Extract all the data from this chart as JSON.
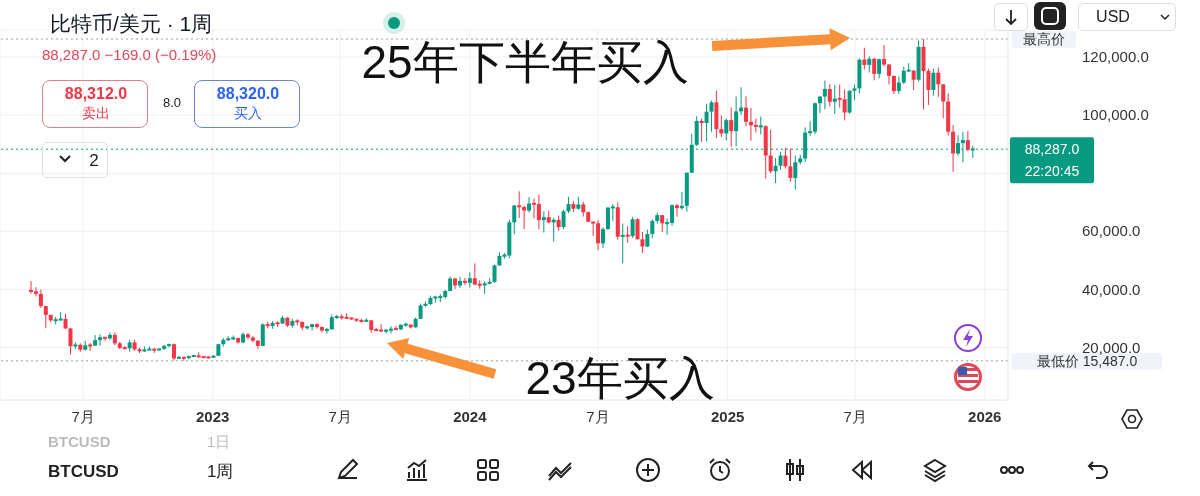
{
  "chart_data": {
    "type": "candlestick",
    "title": "比特币/美元 · 1周",
    "subtitle": "88,287.0 −169.0 (−0.19%)",
    "x": [
      "2022-04-18",
      "2022-04-25",
      "2022-05-02",
      "2022-05-09",
      "2022-05-16",
      "2022-05-23",
      "2022-05-30",
      "2022-06-06",
      "2022-06-13",
      "2022-06-20",
      "2022-06-27",
      "2022-07-04",
      "2022-07-11",
      "2022-07-18",
      "2022-07-25",
      "2022-08-01",
      "2022-08-08",
      "2022-08-15",
      "2022-08-22",
      "2022-08-29",
      "2022-09-05",
      "2022-09-12",
      "2022-09-19",
      "2022-09-26",
      "2022-10-03",
      "2022-10-10",
      "2022-10-17",
      "2022-10-24",
      "2022-10-31",
      "2022-11-07",
      "2022-11-14",
      "2022-11-21",
      "2022-11-28",
      "2022-12-05",
      "2022-12-12",
      "2022-12-19",
      "2022-12-26",
      "2023-01-02",
      "2023-01-09",
      "2023-01-16",
      "2023-01-23",
      "2023-01-30",
      "2023-02-06",
      "2023-02-13",
      "2023-02-20",
      "2023-02-27",
      "2023-03-06",
      "2023-03-13",
      "2023-03-20",
      "2023-03-27",
      "2023-04-03",
      "2023-04-10",
      "2023-04-17",
      "2023-04-24",
      "2023-05-01",
      "2023-05-08",
      "2023-05-15",
      "2023-05-22",
      "2023-05-29",
      "2023-06-05",
      "2023-06-12",
      "2023-06-19",
      "2023-06-26",
      "2023-07-03",
      "2023-07-10",
      "2023-07-17",
      "2023-07-24",
      "2023-07-31",
      "2023-08-07",
      "2023-08-14",
      "2023-08-21",
      "2023-08-28",
      "2023-09-04",
      "2023-09-11",
      "2023-09-18",
      "2023-09-25",
      "2023-10-02",
      "2023-10-09",
      "2023-10-16",
      "2023-10-23",
      "2023-10-30",
      "2023-11-06",
      "2023-11-13",
      "2023-11-20",
      "2023-11-27",
      "2023-12-04",
      "2023-12-11",
      "2023-12-18",
      "2023-12-25",
      "2024-01-01",
      "2024-01-08",
      "2024-01-15",
      "2024-01-22",
      "2024-01-29",
      "2024-02-05",
      "2024-02-12",
      "2024-02-19",
      "2024-02-26",
      "2024-03-04",
      "2024-03-11",
      "2024-03-18",
      "2024-03-25",
      "2024-04-01",
      "2024-04-08",
      "2024-04-15",
      "2024-04-22",
      "2024-04-29",
      "2024-05-06",
      "2024-05-13",
      "2024-05-20",
      "2024-05-27",
      "2024-06-03",
      "2024-06-10",
      "2024-06-17",
      "2024-06-24",
      "2024-07-01",
      "2024-07-08",
      "2024-07-15",
      "2024-07-22",
      "2024-07-29",
      "2024-08-05",
      "2024-08-12",
      "2024-08-19",
      "2024-08-26",
      "2024-09-02",
      "2024-09-09",
      "2024-09-16",
      "2024-09-23",
      "2024-09-30",
      "2024-10-07",
      "2024-10-14",
      "2024-10-21",
      "2024-10-28",
      "2024-11-04",
      "2024-11-11",
      "2024-11-18",
      "2024-11-25",
      "2024-12-02",
      "2024-12-09",
      "2024-12-16",
      "2024-12-23",
      "2024-12-30",
      "2025-01-06",
      "2025-01-13",
      "2025-01-20",
      "2025-01-27",
      "2025-02-03",
      "2025-02-10",
      "2025-02-17",
      "2025-02-24",
      "2025-03-03",
      "2025-03-10",
      "2025-03-17",
      "2025-03-24",
      "2025-03-31",
      "2025-04-07",
      "2025-04-14",
      "2025-04-21",
      "2025-04-28",
      "2025-05-05",
      "2025-05-12",
      "2025-05-19",
      "2025-05-26",
      "2025-06-02",
      "2025-06-09",
      "2025-06-16",
      "2025-06-23",
      "2025-06-30",
      "2025-07-07",
      "2025-07-14",
      "2025-07-21",
      "2025-07-28",
      "2025-08-04",
      "2025-08-11",
      "2025-08-18",
      "2025-08-25",
      "2025-09-01",
      "2025-09-08",
      "2025-09-15",
      "2025-09-22",
      "2025-09-29",
      "2025-10-06",
      "2025-10-13",
      "2025-10-20",
      "2025-10-27",
      "2025-11-03",
      "2025-11-10",
      "2025-11-17",
      "2025-11-24",
      "2025-12-01",
      "2025-12-08",
      "2025-12-15"
    ],
    "ohlc": [
      [
        39700,
        42900,
        38600,
        39400
      ],
      [
        39400,
        40800,
        37600,
        38500
      ],
      [
        38500,
        40000,
        33700,
        34300
      ],
      [
        34300,
        34400,
        26700,
        31300
      ],
      [
        31300,
        31300,
        28700,
        29400
      ],
      [
        29400,
        30600,
        28000,
        29500
      ],
      [
        29500,
        32200,
        29300,
        29900
      ],
      [
        29900,
        31700,
        26500,
        26600
      ],
      [
        26600,
        26900,
        17600,
        20500
      ],
      [
        20500,
        21800,
        19600,
        21000
      ],
      [
        21000,
        21500,
        18600,
        19300
      ],
      [
        19300,
        22400,
        19000,
        20800
      ],
      [
        20800,
        21600,
        18900,
        20700
      ],
      [
        20700,
        24300,
        20600,
        22600
      ],
      [
        22600,
        24600,
        20700,
        23600
      ],
      [
        23600,
        23700,
        22400,
        23200
      ],
      [
        23200,
        25200,
        22700,
        24400
      ],
      [
        24400,
        25200,
        20800,
        21500
      ],
      [
        21500,
        22000,
        19500,
        19900
      ],
      [
        19900,
        20500,
        19500,
        19800
      ],
      [
        19800,
        22700,
        18600,
        21800
      ],
      [
        21800,
        22700,
        18900,
        19400
      ],
      [
        19400,
        19900,
        18200,
        18800
      ],
      [
        18800,
        20400,
        18500,
        19300
      ],
      [
        19300,
        20500,
        19100,
        19400
      ],
      [
        19400,
        19900,
        18200,
        19200
      ],
      [
        19200,
        19700,
        18900,
        19600
      ],
      [
        19600,
        21000,
        19200,
        20600
      ],
      [
        20600,
        21400,
        20100,
        21200
      ],
      [
        21200,
        21400,
        15600,
        16300
      ],
      [
        16300,
        17200,
        16200,
        16700
      ],
      [
        16700,
        16800,
        15487,
        16400
      ],
      [
        16400,
        17400,
        16000,
        17100
      ],
      [
        17100,
        17400,
        16900,
        17200
      ],
      [
        17200,
        18400,
        16600,
        16800
      ],
      [
        16800,
        17000,
        16400,
        16700
      ],
      [
        16700,
        16900,
        16300,
        16600
      ],
      [
        16600,
        17400,
        16500,
        17200
      ],
      [
        17200,
        21300,
        17100,
        21200
      ],
      [
        21200,
        23300,
        20400,
        22700
      ],
      [
        22700,
        23900,
        22300,
        23100
      ],
      [
        23100,
        24200,
        22600,
        23300
      ],
      [
        23300,
        23400,
        21400,
        21800
      ],
      [
        21800,
        25200,
        21500,
        24600
      ],
      [
        24600,
        25100,
        22800,
        23500
      ],
      [
        23500,
        23900,
        21900,
        22400
      ],
      [
        22400,
        22600,
        19600,
        20600
      ],
      [
        20600,
        28400,
        20500,
        28000
      ],
      [
        28000,
        28900,
        26600,
        27500
      ],
      [
        27500,
        29200,
        26500,
        28500
      ],
      [
        28500,
        29000,
        27200,
        28300
      ],
      [
        28300,
        31000,
        28200,
        30300
      ],
      [
        30300,
        30500,
        27100,
        27600
      ],
      [
        27600,
        30000,
        26900,
        29200
      ],
      [
        29200,
        29800,
        27700,
        28900
      ],
      [
        28900,
        29000,
        26000,
        26900
      ],
      [
        26900,
        27600,
        26200,
        27100
      ],
      [
        27100,
        28200,
        25900,
        28100
      ],
      [
        28100,
        28400,
        26600,
        27100
      ],
      [
        27100,
        27300,
        25300,
        25900
      ],
      [
        25900,
        26800,
        24800,
        26300
      ],
      [
        26300,
        31400,
        26200,
        30500
      ],
      [
        30500,
        31300,
        29900,
        30600
      ],
      [
        30600,
        31500,
        29700,
        30300
      ],
      [
        30300,
        31800,
        30000,
        30200
      ],
      [
        30200,
        30400,
        29600,
        29900
      ],
      [
        29900,
        30000,
        28900,
        29300
      ],
      [
        29300,
        29900,
        28600,
        29100
      ],
      [
        29100,
        30100,
        29000,
        29400
      ],
      [
        29400,
        29500,
        25200,
        26100
      ],
      [
        26100,
        26800,
        25800,
        26000
      ],
      [
        26000,
        28100,
        25400,
        25800
      ],
      [
        25800,
        26400,
        24900,
        25900
      ],
      [
        25900,
        27400,
        24900,
        26500
      ],
      [
        26500,
        27500,
        26300,
        26300
      ],
      [
        26300,
        28000,
        26000,
        27900
      ],
      [
        27900,
        28600,
        27200,
        27950
      ],
      [
        27950,
        28000,
        26600,
        27000
      ],
      [
        27000,
        30400,
        26900,
        29900
      ],
      [
        29900,
        35200,
        29800,
        34500
      ],
      [
        34500,
        35900,
        34100,
        35000
      ],
      [
        35000,
        37900,
        34600,
        37100
      ],
      [
        37100,
        37900,
        35500,
        37400
      ],
      [
        37400,
        38400,
        35700,
        37450
      ],
      [
        37450,
        39900,
        36900,
        39500
      ],
      [
        39500,
        44500,
        39400,
        43800
      ],
      [
        43800,
        44000,
        40200,
        41400
      ],
      [
        41400,
        44400,
        40500,
        43000
      ],
      [
        43000,
        44000,
        41500,
        42300
      ],
      [
        42300,
        45900,
        40700,
        43900
      ],
      [
        43900,
        49000,
        41500,
        41700
      ],
      [
        41700,
        43200,
        40300,
        41600
      ],
      [
        41600,
        42800,
        38500,
        42000
      ],
      [
        42000,
        43900,
        41800,
        42600
      ],
      [
        42600,
        48600,
        42300,
        48300
      ],
      [
        48300,
        52800,
        48200,
        51600
      ],
      [
        51600,
        52500,
        50600,
        51700
      ],
      [
        51700,
        64000,
        50800,
        63100
      ],
      [
        63100,
        69200,
        59000,
        68900
      ],
      [
        68900,
        73800,
        64600,
        68400
      ],
      [
        68400,
        68900,
        60800,
        67200
      ],
      [
        67200,
        71800,
        66500,
        69600
      ],
      [
        69600,
        71300,
        64500,
        69400
      ],
      [
        69400,
        72700,
        60700,
        63900
      ],
      [
        63900,
        66900,
        59600,
        64900
      ],
      [
        64900,
        67200,
        62800,
        63100
      ],
      [
        63100,
        64700,
        56500,
        64000
      ],
      [
        64000,
        65500,
        60200,
        61500
      ],
      [
        61500,
        67500,
        60800,
        66900
      ],
      [
        66900,
        71900,
        66300,
        69400
      ],
      [
        69400,
        70500,
        66600,
        67800
      ],
      [
        67800,
        71900,
        67400,
        69300
      ],
      [
        69300,
        70200,
        65100,
        66600
      ],
      [
        66600,
        66900,
        63200,
        63300
      ],
      [
        63300,
        63400,
        58400,
        62800
      ],
      [
        62800,
        63800,
        53500,
        55900
      ],
      [
        55900,
        61400,
        54300,
        60800
      ],
      [
        60800,
        68400,
        60600,
        68200
      ],
      [
        68200,
        69400,
        63500,
        68300
      ],
      [
        68300,
        70000,
        57200,
        58200
      ],
      [
        58200,
        62700,
        49000,
        58700
      ],
      [
        58700,
        61800,
        56100,
        58400
      ],
      [
        58400,
        65000,
        57800,
        64200
      ],
      [
        64200,
        64500,
        57200,
        57300
      ],
      [
        57300,
        59800,
        52600,
        54800
      ],
      [
        54800,
        60600,
        54600,
        59100
      ],
      [
        59100,
        64100,
        57600,
        63600
      ],
      [
        63600,
        66500,
        62700,
        65600
      ],
      [
        65600,
        65600,
        59800,
        62800
      ],
      [
        62800,
        64500,
        58900,
        62900
      ],
      [
        62900,
        69400,
        62000,
        69000
      ],
      [
        69000,
        69500,
        65100,
        68000
      ],
      [
        68000,
        73600,
        67500,
        68800
      ],
      [
        68800,
        80300,
        66800,
        80200
      ],
      [
        80200,
        93500,
        80100,
        89800
      ],
      [
        89800,
        99600,
        89400,
        98000
      ],
      [
        98000,
        98800,
        90800,
        97300
      ],
      [
        97300,
        103900,
        91000,
        101200
      ],
      [
        101200,
        105000,
        94300,
        104400
      ],
      [
        104400,
        108400,
        92200,
        95200
      ],
      [
        95200,
        99900,
        92500,
        93700
      ],
      [
        93700,
        98900,
        91300,
        98300
      ],
      [
        98300,
        102700,
        89200,
        94500
      ],
      [
        94500,
        106400,
        89300,
        101300
      ],
      [
        101300,
        109600,
        100100,
        102600
      ],
      [
        102600,
        106500,
        96200,
        97700
      ],
      [
        97700,
        102500,
        91200,
        96500
      ],
      [
        96500,
        98800,
        94100,
        96100
      ],
      [
        96100,
        99500,
        93400,
        96200
      ],
      [
        96200,
        96500,
        78200,
        86100
      ],
      [
        86100,
        95000,
        80100,
        80700
      ],
      [
        80700,
        85300,
        76600,
        82600
      ],
      [
        82600,
        87400,
        81200,
        86100
      ],
      [
        86100,
        88800,
        81600,
        82400
      ],
      [
        82400,
        88500,
        77100,
        78400
      ],
      [
        78400,
        86100,
        74400,
        83800
      ],
      [
        83800,
        86400,
        83000,
        85100
      ],
      [
        85100,
        95800,
        83900,
        94000
      ],
      [
        94000,
        97900,
        92900,
        94300
      ],
      [
        94300,
        104300,
        93400,
        104100
      ],
      [
        104100,
        106600,
        100700,
        106400
      ],
      [
        106400,
        111900,
        102000,
        109000
      ],
      [
        109000,
        110700,
        103000,
        104600
      ],
      [
        104600,
        110400,
        100400,
        105700
      ],
      [
        105700,
        110600,
        102600,
        105500
      ],
      [
        105500,
        108900,
        98200,
        100900
      ],
      [
        100900,
        108500,
        100500,
        108400
      ],
      [
        108400,
        110500,
        105100,
        109200
      ],
      [
        109200,
        119500,
        107500,
        119100
      ],
      [
        119100,
        123200,
        115700,
        117300
      ],
      [
        117300,
        120200,
        114700,
        119400
      ],
      [
        119400,
        119800,
        112000,
        114200
      ],
      [
        114200,
        119400,
        112600,
        119300
      ],
      [
        119300,
        124100,
        116800,
        117400
      ],
      [
        117400,
        117600,
        110600,
        113500
      ],
      [
        113500,
        113600,
        107300,
        108300
      ],
      [
        108300,
        113300,
        107300,
        111200
      ],
      [
        111200,
        116700,
        110700,
        115300
      ],
      [
        115300,
        117900,
        114900,
        115350
      ],
      [
        115350,
        115400,
        108600,
        112200
      ],
      [
        112200,
        125700,
        111600,
        123500
      ],
      [
        123500,
        126200,
        102000,
        115200
      ],
      [
        115200,
        116000,
        103500,
        108700
      ],
      [
        108700,
        116000,
        106700,
        114600
      ],
      [
        114600,
        116400,
        106300,
        110600
      ],
      [
        110600,
        110700,
        98900,
        104700
      ],
      [
        104700,
        107500,
        93000,
        94300
      ],
      [
        94300,
        96600,
        80500,
        86800
      ],
      [
        86800,
        93100,
        86100,
        90400
      ],
      [
        90400,
        94200,
        83800,
        91400
      ],
      [
        91400,
        94600,
        87600,
        88100
      ],
      [
        88100,
        89500,
        85300,
        88287
      ]
    ],
    "xlim": [
      "2022-03-05",
      "2026-02-03"
    ],
    "xticks": [
      {
        "value": "2022-07-01",
        "label": "7月"
      },
      {
        "value": "2023-01-01",
        "label": "2023"
      },
      {
        "value": "2023-07-01",
        "label": "7月"
      },
      {
        "value": "2024-01-01",
        "label": "2024"
      },
      {
        "value": "2024-07-01",
        "label": "7月"
      },
      {
        "value": "2025-01-01",
        "label": "2025"
      },
      {
        "value": "2025-07-01",
        "label": "7月"
      },
      {
        "value": "2026-01-01",
        "label": "2026"
      }
    ],
    "ylim": [
      2000,
      129300
    ],
    "yticks": [
      {
        "value": 20000,
        "label": "20,000.0"
      },
      {
        "value": 40000,
        "label": "40,000.0"
      },
      {
        "value": 60000,
        "label": "60,000.0"
      },
      {
        "value": 80000,
        "label": null
      },
      {
        "value": 100000,
        "label": "100,000.0"
      },
      {
        "value": 120000,
        "label": "120,000.0"
      }
    ],
    "grid": true,
    "ref_lines": [
      {
        "axis": "y",
        "value": 126200,
        "label": "最高价",
        "color": "#9e9e9e",
        "line_style": "dotted"
      },
      {
        "axis": "y",
        "value": 88287,
        "label": "88,287.0",
        "color": "#089981",
        "line_style": "dotted"
      },
      {
        "axis": "y",
        "value": 15487,
        "label": "最低价 15,487.0",
        "color": "#9e9e9e",
        "line_style": "dotted"
      }
    ],
    "annotations": [
      "25年下半年买入",
      "23年买入",
      "88,312.0",
      "卖出",
      "8.0",
      "88,320.0",
      "买入",
      "2",
      "USD",
      "22:20:45",
      "BTCUSD",
      "1日",
      "BTCUSD",
      "1周"
    ]
  }
}
